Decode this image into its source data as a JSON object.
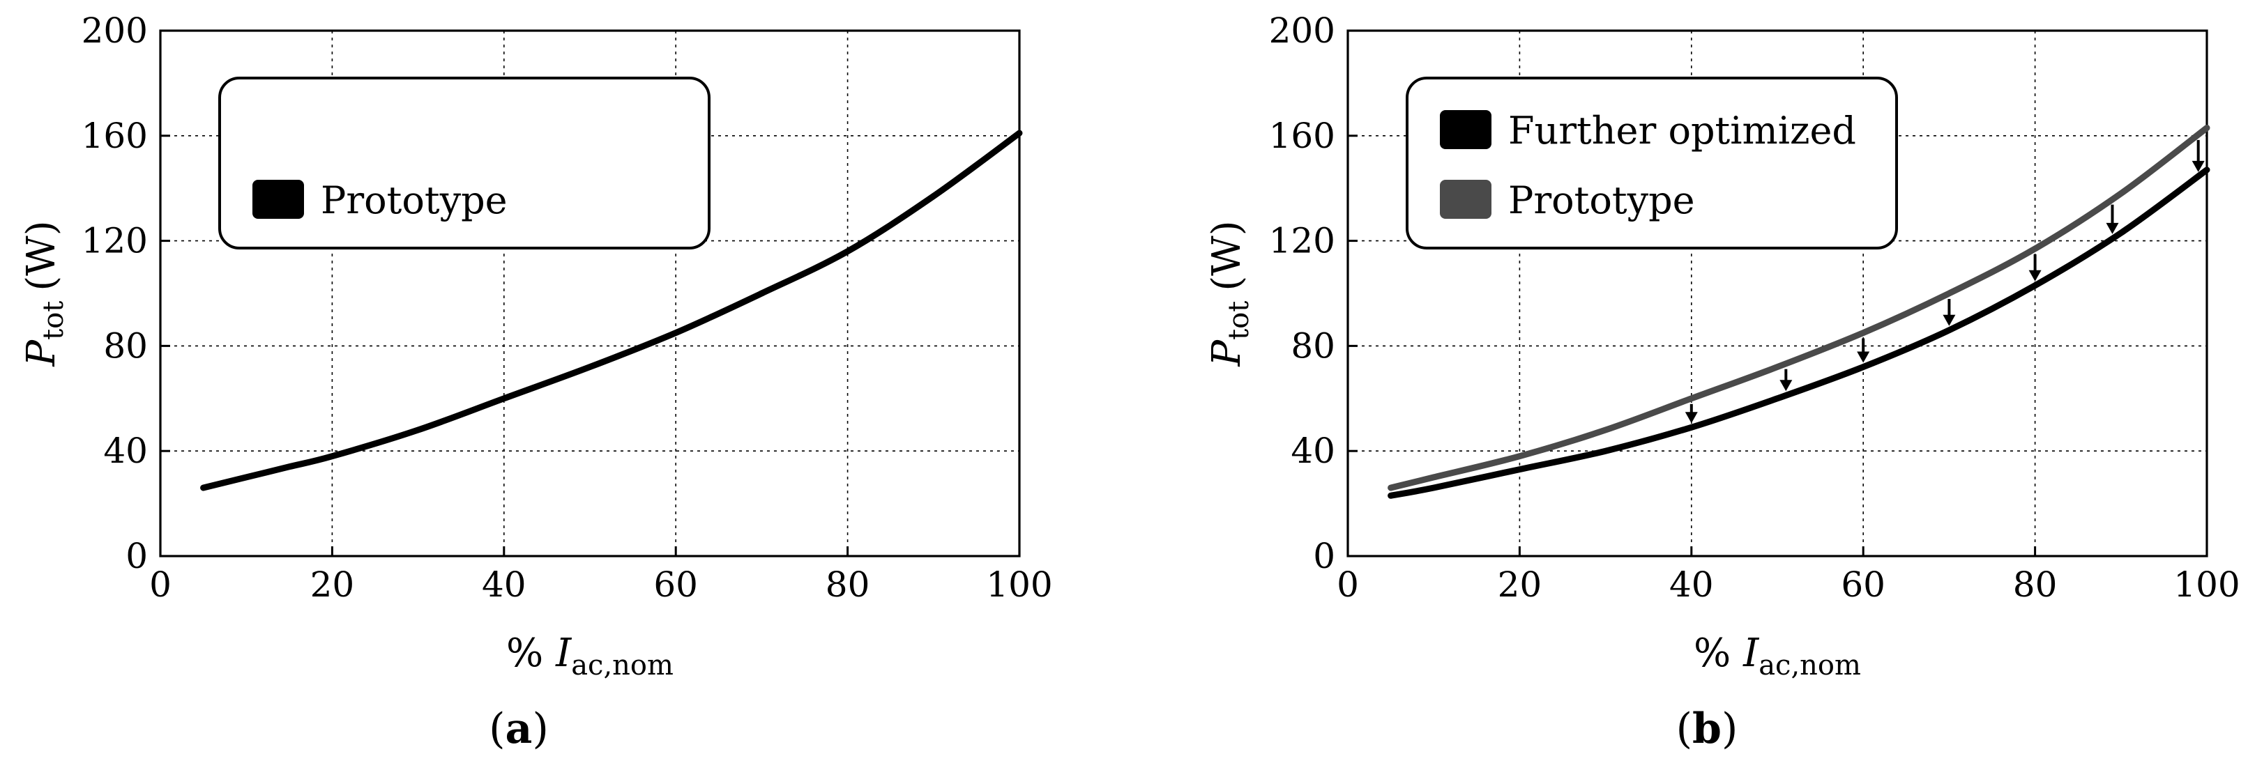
{
  "colors": {
    "further_optimized": "#000000",
    "prototype_b": "#4a4a4a",
    "prototype_a": "#000000"
  },
  "chart_data": [
    {
      "type": "line",
      "panel_label": "a",
      "xlabel_prefix": "% ",
      "xlabel_var": "I",
      "xlabel_sub": "ac,nom",
      "ylabel_var": "P",
      "ylabel_sub": "tot",
      "ylabel_unit": "(W)",
      "xlim": [
        0,
        100
      ],
      "ylim": [
        0,
        200
      ],
      "xticks": [
        "0",
        "20",
        "40",
        "60",
        "80",
        "100"
      ],
      "yticks": [
        "0",
        "40",
        "80",
        "120",
        "160",
        "200"
      ],
      "grid": true,
      "legend_position": "top-left",
      "series": [
        {
          "name": "Prototype",
          "color": "#000000",
          "x": [
            5,
            10,
            15,
            20,
            30,
            40,
            50,
            60,
            70,
            80,
            90,
            100
          ],
          "y": [
            26,
            30,
            34,
            38,
            48,
            60,
            72,
            85,
            100,
            116,
            137,
            161
          ]
        }
      ]
    },
    {
      "type": "line",
      "panel_label": "b",
      "xlabel_prefix": "% ",
      "xlabel_var": "I",
      "xlabel_sub": "ac,nom",
      "ylabel_var": "P",
      "ylabel_sub": "tot",
      "ylabel_unit": "(W)",
      "xlim": [
        0,
        100
      ],
      "ylim": [
        0,
        200
      ],
      "xticks": [
        "0",
        "20",
        "40",
        "60",
        "80",
        "100"
      ],
      "yticks": [
        "0",
        "40",
        "80",
        "120",
        "160",
        "200"
      ],
      "grid": true,
      "legend_position": "top-left",
      "series": [
        {
          "name": "Further optimized",
          "color": "#000000",
          "x": [
            5,
            10,
            20,
            30,
            40,
            50,
            60,
            70,
            80,
            90,
            100
          ],
          "y": [
            23,
            26,
            33,
            40,
            49,
            60,
            72,
            86,
            103,
            123,
            147
          ]
        },
        {
          "name": "Prototype",
          "color": "#4a4a4a",
          "x": [
            5,
            10,
            20,
            30,
            40,
            50,
            60,
            70,
            80,
            90,
            100
          ],
          "y": [
            26,
            30,
            38,
            48,
            60,
            72,
            85,
            100,
            117,
            138,
            163
          ]
        }
      ],
      "annotation_arrows_x": [
        40,
        51,
        60,
        70,
        80,
        89,
        99
      ]
    }
  ]
}
